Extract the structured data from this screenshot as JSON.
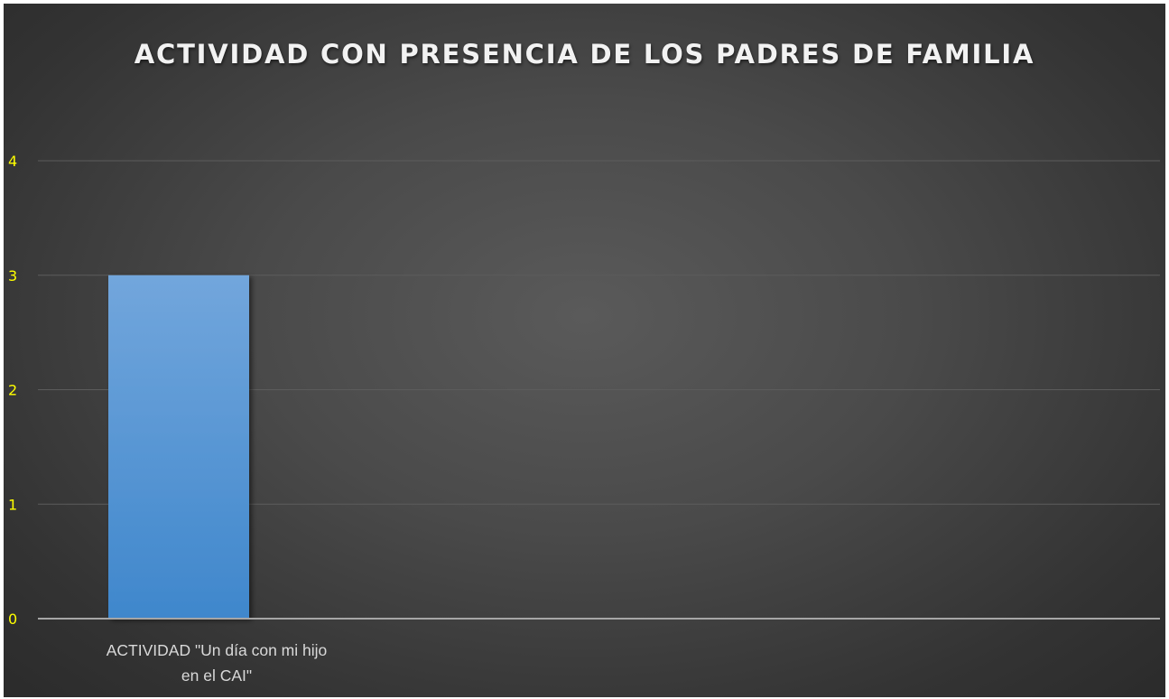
{
  "chart_data": {
    "type": "bar",
    "title": "ACTIVIDAD CON PRESENCIA DE LOS PADRES DE FAMILIA",
    "categories": [
      "ACTIVIDAD \"Un día con mi hijo en el CAI\""
    ],
    "category_label_lines": [
      [
        "ACTIVIDAD \"Un día con mi hijo",
        "en el CAI\""
      ]
    ],
    "series": [
      {
        "values": [
          3
        ]
      }
    ],
    "yticks": [
      "0",
      "1",
      "2",
      "3",
      "4"
    ],
    "ylim": [
      0,
      4
    ],
    "grid": true,
    "legend": "none",
    "colors": {
      "bar_top": "#72a6dc",
      "bar_bottom": "#3f87cc",
      "ytick": "#ffff00",
      "xtick": "#d9d9d9",
      "gridline": "#5c5c5c",
      "axis": "#a6a6a6"
    }
  }
}
